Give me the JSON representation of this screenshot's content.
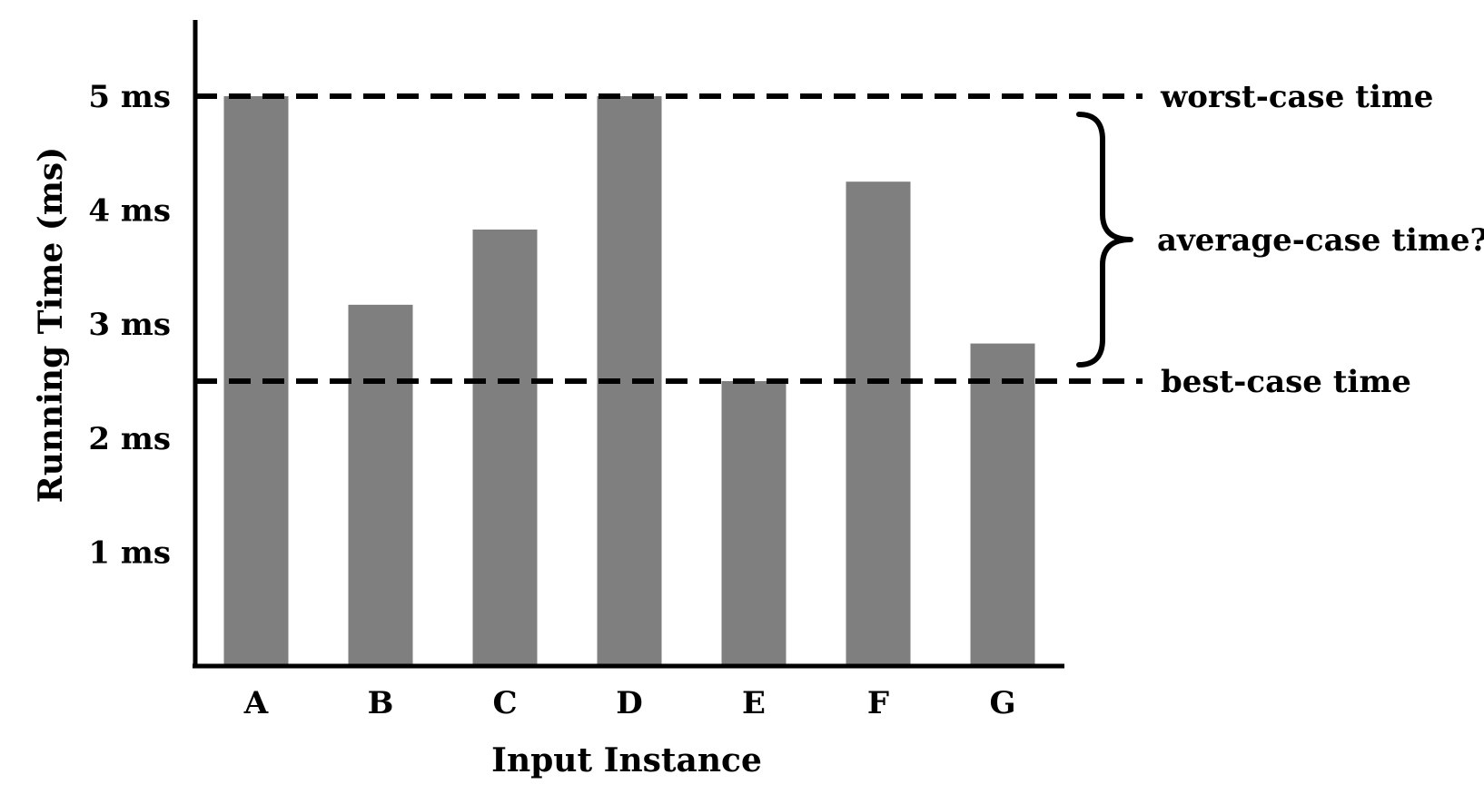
{
  "chart_data": {
    "type": "bar",
    "title": "",
    "xlabel": "Input Instance",
    "ylabel": "Running Time (ms)",
    "categories": [
      "A",
      "B",
      "C",
      "D",
      "E",
      "F",
      "G"
    ],
    "values": [
      5.0,
      3.17,
      3.83,
      5.0,
      2.5,
      4.25,
      2.83
    ],
    "ylim": [
      0,
      5.7
    ],
    "yticks": [
      {
        "value": 1,
        "label": "1 ms"
      },
      {
        "value": 2,
        "label": "2 ms"
      },
      {
        "value": 3,
        "label": "3 ms"
      },
      {
        "value": 4,
        "label": "4 ms"
      },
      {
        "value": 5,
        "label": "5 ms"
      }
    ],
    "grid": false,
    "bar_color": "#7f7f7f",
    "reference_lines": [
      {
        "name": "worst",
        "value": 5.0,
        "label": "worst-case time",
        "style": "dashed"
      },
      {
        "name": "best",
        "value": 2.5,
        "label": "best-case time",
        "style": "dashed"
      }
    ],
    "annotations": [
      {
        "type": "brace",
        "from": 2.5,
        "to": 5.0,
        "label": "average-case time?"
      }
    ]
  }
}
